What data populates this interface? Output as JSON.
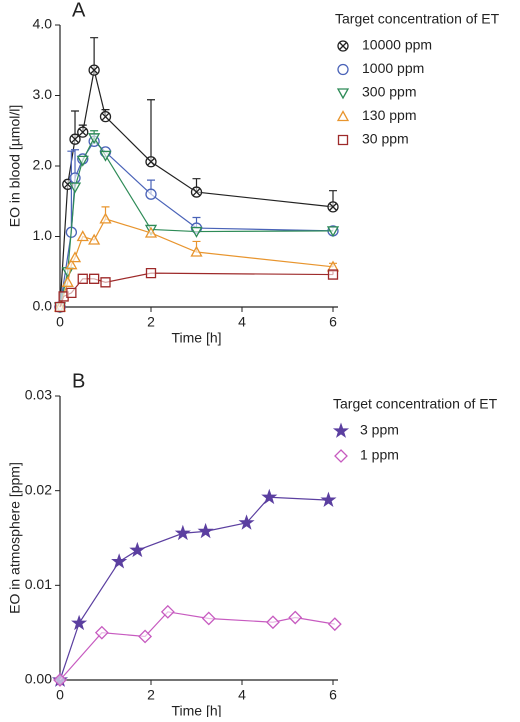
{
  "chart_data": [
    {
      "type": "line",
      "panel_label": "A",
      "x_label": "Time [h]",
      "y_label": "EO in blood [µmol/l]",
      "legend_title": "Target concentration of ET",
      "legend": "upper right",
      "x": [
        0,
        0.08,
        0.17,
        0.25,
        0.33,
        0.5,
        0.75,
        1,
        2,
        3,
        6
      ],
      "xlim": [
        0,
        6
      ],
      "xticks": [
        0,
        2,
        4,
        6
      ],
      "ylim": [
        0,
        4
      ],
      "yticks": [
        {
          "value": 0,
          "label": "0.0"
        },
        {
          "value": 1,
          "label": "1.0"
        },
        {
          "value": 2,
          "label": "2.0"
        },
        {
          "value": 3,
          "label": "3.0"
        },
        {
          "value": 4,
          "label": "4.0"
        }
      ],
      "series": [
        {
          "name": "10000 ppm",
          "color": "#222222",
          "marker": "circle-x",
          "values": [
            0,
            null,
            1.74,
            null,
            2.38,
            2.48,
            3.36,
            2.7,
            2.06,
            1.63,
            1.42
          ],
          "errors": [
            null,
            null,
            null,
            null,
            0.4,
            0.1,
            0.46,
            0.1,
            0.88,
            0.19,
            0.23
          ]
        },
        {
          "name": "1000 ppm",
          "color": "#4a63b8",
          "marker": "circle",
          "values": [
            0,
            null,
            null,
            1.06,
            1.83,
            2.1,
            2.35,
            2.2,
            1.6,
            1.12,
            1.08
          ],
          "errors": [
            null,
            null,
            null,
            1.15,
            0.4,
            null,
            0.1,
            null,
            0.2,
            0.15,
            0.05
          ]
        },
        {
          "name": "300 ppm",
          "color": "#2e8b57",
          "marker": "triangle-down",
          "values": [
            0,
            null,
            0.5,
            null,
            1.7,
            2.08,
            2.4,
            2.15,
            1.1,
            1.07,
            1.08
          ],
          "errors": [
            null,
            null,
            null,
            null,
            null,
            null,
            0.1,
            null,
            null,
            null,
            null
          ]
        },
        {
          "name": "130 ppm",
          "color": "#e8952e",
          "marker": "triangle-up",
          "values": [
            0,
            null,
            0.35,
            0.6,
            0.7,
            1.0,
            0.95,
            1.25,
            1.05,
            0.78,
            0.57
          ],
          "errors": [
            null,
            null,
            null,
            null,
            null,
            null,
            null,
            0.17,
            null,
            0.15,
            0.05
          ]
        },
        {
          "name": "30 ppm",
          "color": "#9e2a2a",
          "marker": "square",
          "values": [
            0,
            0.15,
            null,
            0.2,
            null,
            0.4,
            0.4,
            0.35,
            0.48,
            null,
            0.46
          ],
          "errors": [
            null,
            null,
            null,
            null,
            null,
            null,
            null,
            null,
            null,
            null,
            0.05
          ]
        }
      ]
    },
    {
      "type": "line",
      "panel_label": "B",
      "x_label": "Time [h]",
      "y_label": "EO in atmosphere [ppm]",
      "legend_title": "Target concentration of ET",
      "legend": "upper right",
      "xlim": [
        0,
        6
      ],
      "xticks": [
        0,
        2,
        4,
        6
      ],
      "ylim": [
        0,
        0.03
      ],
      "yticks": [
        {
          "value": 0,
          "label": "0.00"
        },
        {
          "value": 0.01,
          "label": "0.01"
        },
        {
          "value": 0.02,
          "label": "0.02"
        },
        {
          "value": 0.03,
          "label": "0.03"
        }
      ],
      "series": [
        {
          "name": "3 ppm",
          "color": "#5b3fa0",
          "marker": "star",
          "x": [
            0,
            0.42,
            1.3,
            1.7,
            2.7,
            3.2,
            4.1,
            4.6,
            5.9
          ],
          "values": [
            0,
            0.006,
            0.0125,
            0.0137,
            0.0155,
            0.0157,
            0.0166,
            0.0193,
            0.019
          ]
        },
        {
          "name": "1 ppm",
          "color": "#c75bc0",
          "marker": "diamond",
          "x": [
            0,
            0.92,
            1.87,
            2.37,
            3.27,
            4.68,
            5.17,
            6.04
          ],
          "values": [
            0,
            0.005,
            0.0046,
            0.0072,
            0.0065,
            0.0061,
            0.0066,
            0.0059
          ]
        }
      ]
    }
  ]
}
